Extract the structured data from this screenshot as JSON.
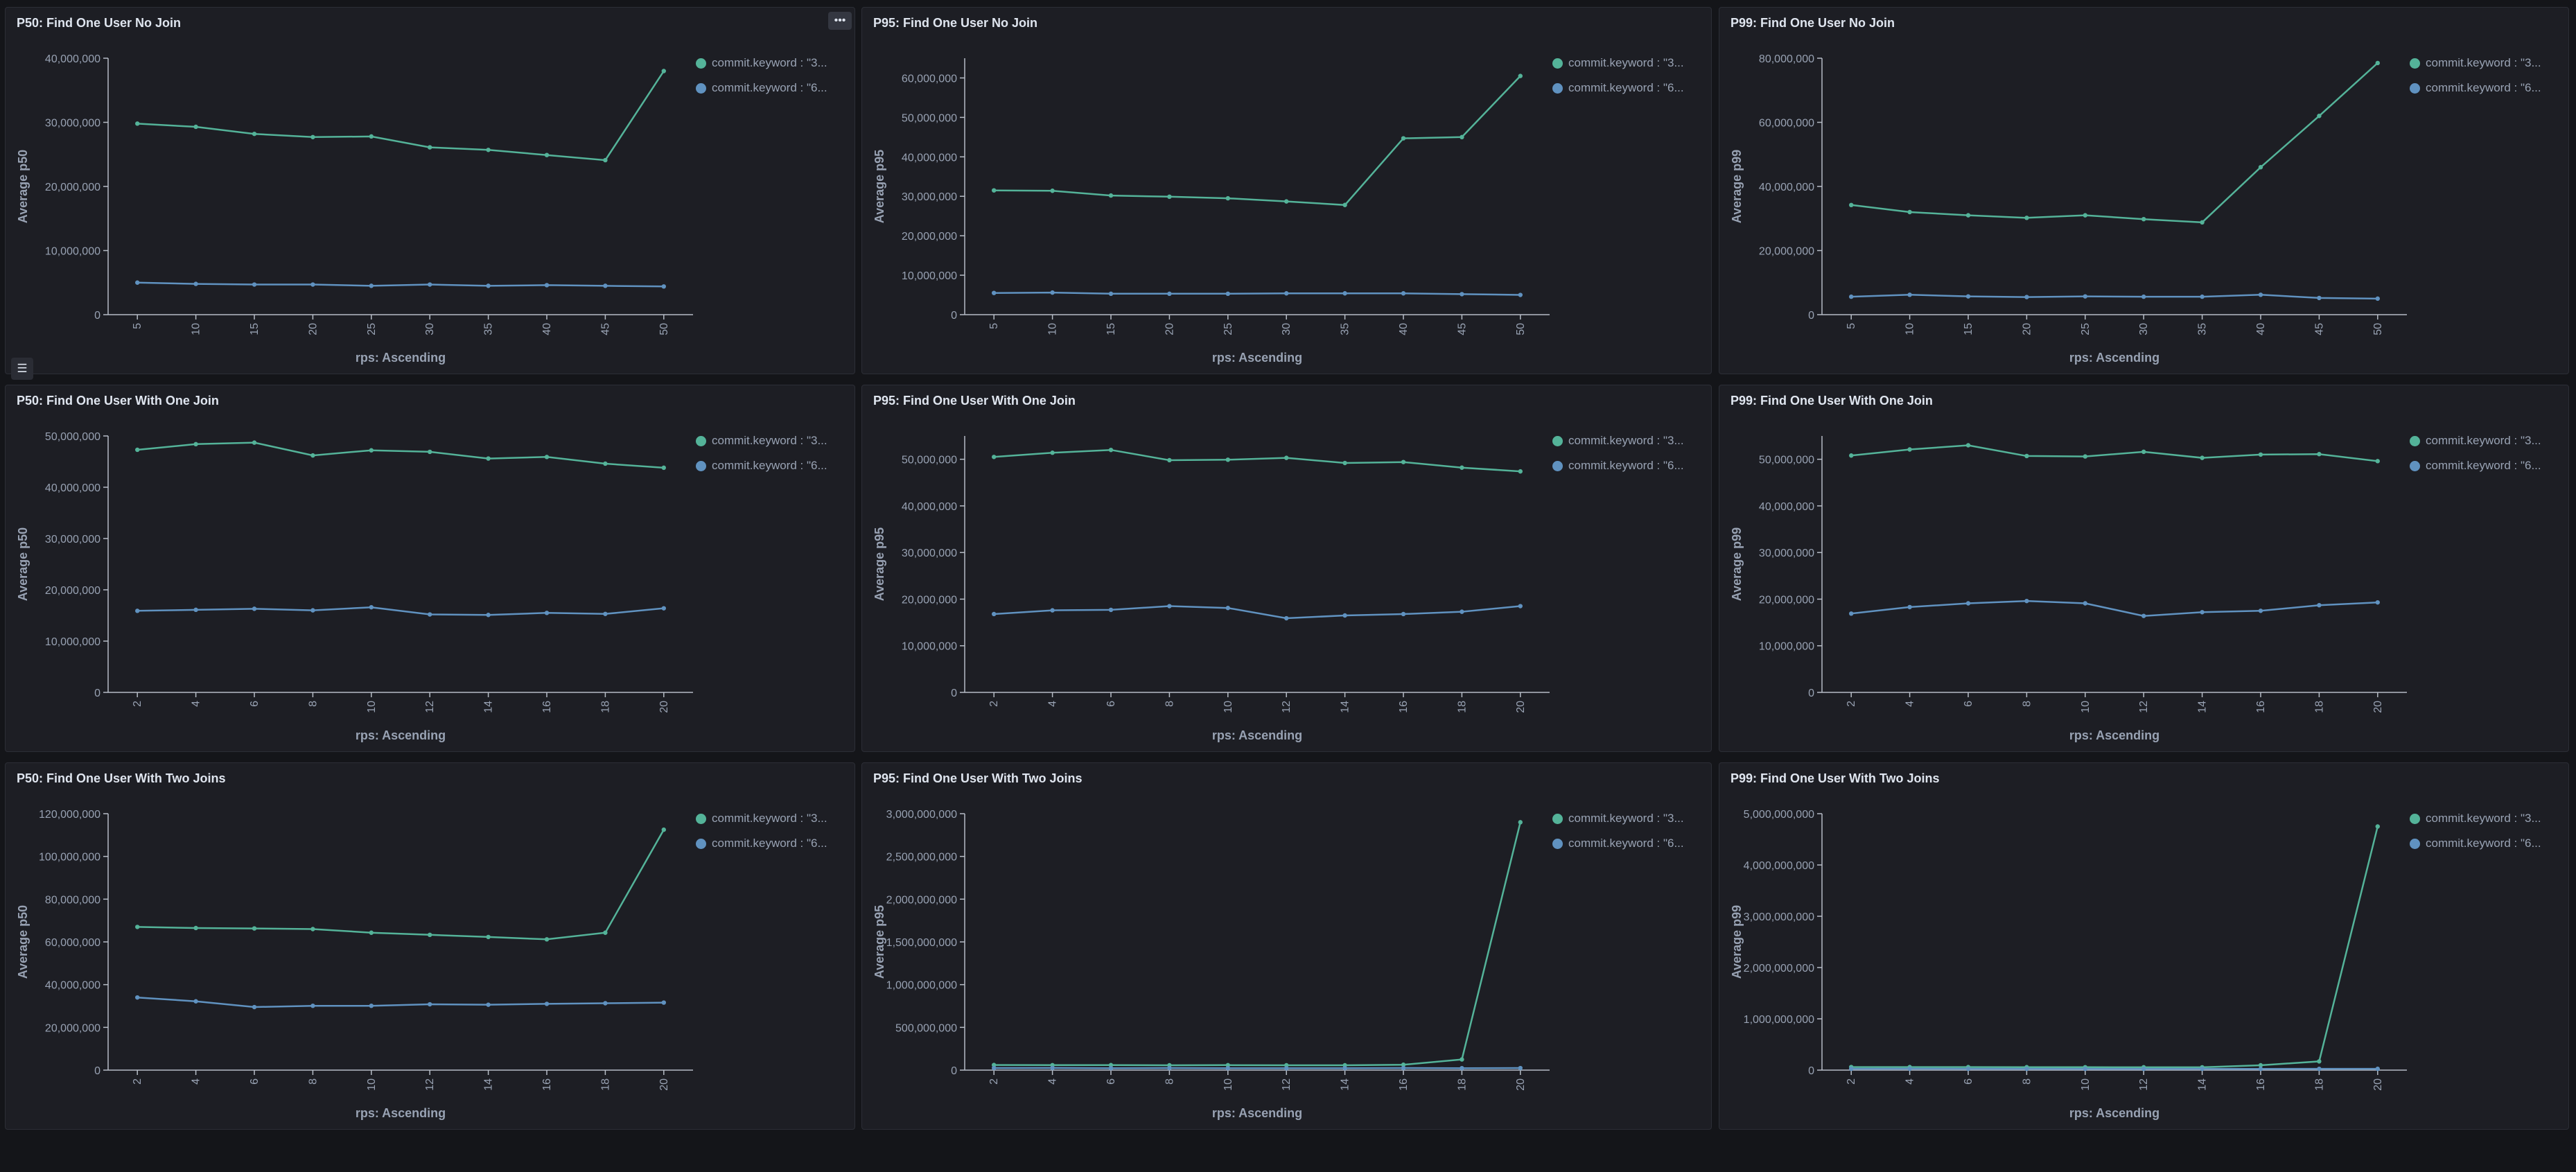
{
  "colors": {
    "series1": "#54b399",
    "series2": "#6092c0"
  },
  "legend": {
    "series1": "commit.keyword : \"3...",
    "series2": "commit.keyword : \"6..."
  },
  "icons": {
    "panel_menu": "ellipsis-icon",
    "legend_toggle": "list-icon"
  },
  "panels": [
    {
      "title": "P50: Find One User No Join",
      "chart_data": {
        "type": "line",
        "xlabel": "rps: Ascending",
        "ylabel": "Average p50",
        "categories": [
          "5",
          "10",
          "15",
          "20",
          "25",
          "30",
          "35",
          "40",
          "45",
          "50"
        ],
        "ylim": [
          0,
          40000000
        ],
        "yticks": [
          0,
          10000000,
          20000000,
          30000000,
          40000000
        ],
        "yticklabels": [
          "0",
          "10,000,000",
          "20,000,000",
          "30,000,000",
          "40,000,000"
        ],
        "series": [
          {
            "values": [
              29800000,
              29300000,
              28200000,
              27700000,
              27800000,
              26100000,
              25700000,
              24900000,
              24100000,
              38000000
            ]
          },
          {
            "values": [
              5000000,
              4800000,
              4700000,
              4700000,
              4500000,
              4700000,
              4500000,
              4600000,
              4500000,
              4400000
            ]
          }
        ]
      }
    },
    {
      "title": "P95: Find One User No Join",
      "chart_data": {
        "type": "line",
        "xlabel": "rps: Ascending",
        "ylabel": "Average p95",
        "categories": [
          "5",
          "10",
          "15",
          "20",
          "25",
          "30",
          "35",
          "40",
          "45",
          "50"
        ],
        "ylim": [
          0,
          65000000
        ],
        "yticks": [
          0,
          10000000,
          20000000,
          30000000,
          40000000,
          50000000,
          60000000
        ],
        "yticklabels": [
          "0",
          "10,000,000",
          "20,000,000",
          "30,000,000",
          "40,000,000",
          "50,000,000",
          "60,000,000"
        ],
        "series": [
          {
            "values": [
              31500000,
              31400000,
              30200000,
              29900000,
              29500000,
              28700000,
              27800000,
              44700000,
              45000000,
              60500000
            ]
          },
          {
            "values": [
              5500000,
              5600000,
              5300000,
              5300000,
              5300000,
              5400000,
              5400000,
              5400000,
              5200000,
              5000000
            ]
          }
        ]
      }
    },
    {
      "title": "P99: Find One User No Join",
      "chart_data": {
        "type": "line",
        "xlabel": "rps: Ascending",
        "ylabel": "Average p99",
        "categories": [
          "5",
          "10",
          "15",
          "20",
          "25",
          "30",
          "35",
          "40",
          "45",
          "50"
        ],
        "ylim": [
          0,
          80000000
        ],
        "yticks": [
          0,
          20000000,
          40000000,
          60000000,
          80000000
        ],
        "yticklabels": [
          "0",
          "20,000,000",
          "40,000,000",
          "60,000,000",
          "80,000,000"
        ],
        "series": [
          {
            "values": [
              34200000,
              32000000,
              31000000,
              30200000,
              31000000,
              29800000,
              28800000,
              46000000,
              62000000,
              78500000
            ]
          },
          {
            "values": [
              5600000,
              6200000,
              5700000,
              5500000,
              5700000,
              5600000,
              5600000,
              6200000,
              5200000,
              5000000
            ]
          }
        ]
      }
    },
    {
      "title": "P50: Find One User With One Join",
      "chart_data": {
        "type": "line",
        "xlabel": "rps: Ascending",
        "ylabel": "Average p50",
        "categories": [
          "2",
          "4",
          "6",
          "8",
          "10",
          "12",
          "14",
          "16",
          "18",
          "20"
        ],
        "ylim": [
          0,
          50000000
        ],
        "yticks": [
          0,
          10000000,
          20000000,
          30000000,
          40000000,
          50000000
        ],
        "yticklabels": [
          "0",
          "10,000,000",
          "20,000,000",
          "30,000,000",
          "40,000,000",
          "50,000,000"
        ],
        "series": [
          {
            "values": [
              47300000,
              48400000,
              48700000,
              46200000,
              47200000,
              46900000,
              45600000,
              45900000,
              44600000,
              43800000
            ]
          },
          {
            "values": [
              15900000,
              16100000,
              16300000,
              16000000,
              16600000,
              15200000,
              15100000,
              15500000,
              15300000,
              16400000
            ]
          }
        ]
      }
    },
    {
      "title": "P95: Find One User With One Join",
      "chart_data": {
        "type": "line",
        "xlabel": "rps: Ascending",
        "ylabel": "Average p95",
        "categories": [
          "2",
          "4",
          "6",
          "8",
          "10",
          "12",
          "14",
          "16",
          "18",
          "20"
        ],
        "ylim": [
          0,
          55000000
        ],
        "yticks": [
          0,
          10000000,
          20000000,
          30000000,
          40000000,
          50000000
        ],
        "yticklabels": [
          "0",
          "10,000,000",
          "20,000,000",
          "30,000,000",
          "40,000,000",
          "50,000,000"
        ],
        "series": [
          {
            "values": [
              50500000,
              51400000,
              52000000,
              49800000,
              49900000,
              50300000,
              49200000,
              49400000,
              48200000,
              47400000
            ]
          },
          {
            "values": [
              16800000,
              17600000,
              17700000,
              18500000,
              18100000,
              15900000,
              16500000,
              16800000,
              17300000,
              18500000
            ]
          }
        ]
      }
    },
    {
      "title": "P99: Find One User With One Join",
      "chart_data": {
        "type": "line",
        "xlabel": "rps: Ascending",
        "ylabel": "Average p99",
        "categories": [
          "2",
          "4",
          "6",
          "8",
          "10",
          "12",
          "14",
          "16",
          "18",
          "20"
        ],
        "ylim": [
          0,
          55000000
        ],
        "yticks": [
          0,
          10000000,
          20000000,
          30000000,
          40000000,
          50000000
        ],
        "yticklabels": [
          "0",
          "10,000,000",
          "20,000,000",
          "30,000,000",
          "40,000,000",
          "50,000,000"
        ],
        "series": [
          {
            "values": [
              50800000,
              52100000,
              53000000,
              50700000,
              50600000,
              51600000,
              50300000,
              51000000,
              51100000,
              49600000
            ]
          },
          {
            "values": [
              16900000,
              18300000,
              19100000,
              19600000,
              19100000,
              16400000,
              17200000,
              17500000,
              18700000,
              19300000
            ]
          }
        ]
      }
    },
    {
      "title": "P50: Find One User With Two Joins",
      "chart_data": {
        "type": "line",
        "xlabel": "rps: Ascending",
        "ylabel": "Average p50",
        "categories": [
          "2",
          "4",
          "6",
          "8",
          "10",
          "12",
          "14",
          "16",
          "18",
          "20"
        ],
        "ylim": [
          0,
          120000000
        ],
        "yticks": [
          0,
          20000000,
          40000000,
          60000000,
          80000000,
          100000000,
          120000000
        ],
        "yticklabels": [
          "0",
          "20,000,000",
          "40,000,000",
          "60,000,000",
          "80,000,000",
          "100,000,000",
          "120,000,000"
        ],
        "series": [
          {
            "values": [
              67000000,
              66500000,
              66300000,
              66000000,
              64300000,
              63300000,
              62300000,
              61200000,
              64300000,
              112500000
            ]
          },
          {
            "values": [
              34000000,
              32200000,
              29500000,
              30100000,
              30100000,
              30800000,
              30600000,
              31000000,
              31300000,
              31600000
            ]
          }
        ]
      }
    },
    {
      "title": "P95: Find One User With Two Joins",
      "chart_data": {
        "type": "line",
        "xlabel": "rps: Ascending",
        "ylabel": "Average p95",
        "categories": [
          "2",
          "4",
          "6",
          "8",
          "10",
          "12",
          "14",
          "16",
          "18",
          "20"
        ],
        "ylim": [
          0,
          3000000000
        ],
        "yticks": [
          0,
          500000000,
          1000000000,
          1500000000,
          2000000000,
          2500000000,
          3000000000
        ],
        "yticklabels": [
          "0",
          "500,000,000",
          "1,000,000,000",
          "1,500,000,000",
          "2,000,000,000",
          "2,500,000,000",
          "3,000,000,000"
        ],
        "series": [
          {
            "values": [
              60000000,
              58000000,
              59000000,
              57000000,
              58000000,
              57000000,
              57000000,
              63000000,
              125000000,
              2900000000
            ]
          },
          {
            "values": [
              24000000,
              25000000,
              23000000,
              24000000,
              23000000,
              22000000,
              23000000,
              24000000,
              23000000,
              24000000
            ]
          }
        ]
      }
    },
    {
      "title": "P99: Find One User With Two Joins",
      "chart_data": {
        "type": "line",
        "xlabel": "rps: Ascending",
        "ylabel": "Average p99",
        "categories": [
          "2",
          "4",
          "6",
          "8",
          "10",
          "12",
          "14",
          "16",
          "18",
          "20"
        ],
        "ylim": [
          0,
          5000000000
        ],
        "yticks": [
          0,
          1000000000,
          2000000000,
          3000000000,
          4000000000,
          5000000000
        ],
        "yticklabels": [
          "0",
          "1,000,000,000",
          "2,000,000,000",
          "3,000,000,000",
          "4,000,000,000",
          "5,000,000,000"
        ],
        "series": [
          {
            "values": [
              60000000,
              59000000,
              59000000,
              58000000,
              57000000,
              56000000,
              55000000,
              95000000,
              170000000,
              4750000000
            ]
          },
          {
            "values": [
              26000000,
              27000000,
              25000000,
              25000000,
              24000000,
              24000000,
              25000000,
              24000000,
              25000000,
              26000000
            ]
          }
        ]
      }
    }
  ]
}
